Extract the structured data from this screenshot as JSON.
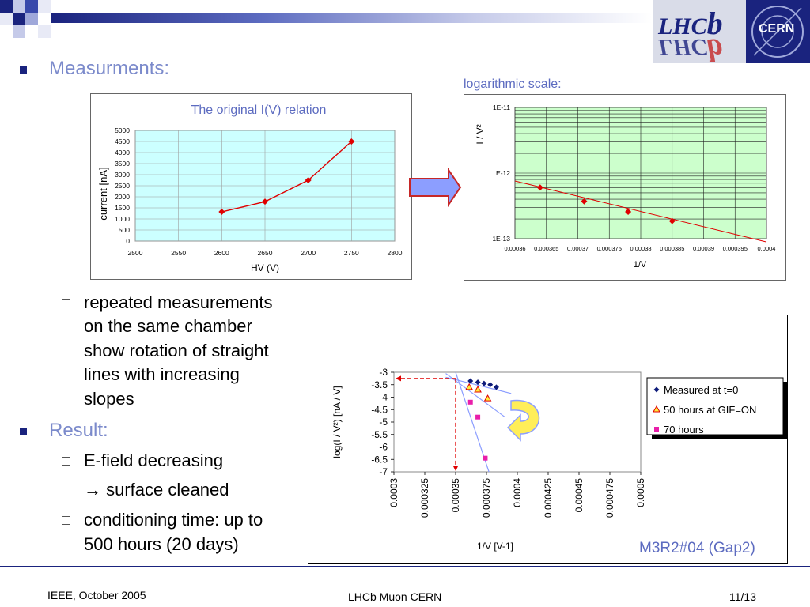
{
  "slide": {
    "heading1": "Measurments:",
    "log_caption": "logarithmic scale:",
    "sub_bullets_1": [
      "repeated measurements",
      "on the same chamber",
      "show rotation of straight",
      "lines with increasing",
      "slopes"
    ],
    "heading2": "Result:",
    "sub_bullet_2a": "E-field decreasing",
    "sub_bullet_2b": "→ surface cleaned",
    "sub_bullet_3": [
      "conditioning time: up to",
      "500 hours (20 days)"
    ],
    "chamber_label": "M3R2#04 (Gap2)"
  },
  "logos": {
    "lhcb": "LHCb",
    "cern": "CERN"
  },
  "footer": {
    "left": "IEEE, October 2005",
    "center": "LHCb Muon CERN",
    "right": "11/13"
  },
  "colors": {
    "title_blue": "#7b8acb",
    "bullet_navy": "#1a237e",
    "plot_cyan": "#ccffff",
    "plot_green": "#ccffcc",
    "marker_red": "#e00000"
  },
  "chart_data": [
    {
      "type": "line",
      "title": "The original I(V) relation",
      "xlabel": "HV (V)",
      "ylabel": "current [nA]",
      "xlim": [
        2500,
        2800
      ],
      "ylim": [
        0,
        5000
      ],
      "x_ticks": [
        "2500",
        "2550",
        "2600",
        "2650",
        "2700",
        "2750",
        "2800"
      ],
      "y_ticks": [
        "0",
        "500",
        "1000",
        "1500",
        "2000",
        "2500",
        "3000",
        "3500",
        "4000",
        "4500",
        "5000"
      ],
      "x": [
        2600,
        2650,
        2700,
        2750
      ],
      "y": [
        1320,
        1780,
        2750,
        4500
      ]
    },
    {
      "type": "scatter",
      "title": "",
      "xlabel": "1/V",
      "ylabel": "I / V²",
      "y_scale": "log",
      "xlim": [
        0.00036,
        0.0004
      ],
      "ylim_log10": [
        -13,
        -11
      ],
      "x_ticks": [
        "0.00036",
        "0.000365",
        "0.00037",
        "0.000375",
        "0.00038",
        "0.000385",
        "0.00039",
        "0.000395",
        "0.0004"
      ],
      "y_ticks": [
        "1E-11",
        "E-12",
        "1E-13"
      ],
      "x": [
        0.000364,
        0.000371,
        0.000378,
        0.000385
      ],
      "log10_y": [
        -12.22,
        -12.43,
        -12.59,
        -12.73
      ],
      "fit": {
        "x": [
          0.00036,
          0.0004
        ],
        "log10_y": [
          -12.12,
          -13.05
        ]
      }
    },
    {
      "type": "scatter",
      "title": "",
      "xlabel": "1/V [V-1]",
      "ylabel": "log(I / V²) [nA / V]",
      "xlim": [
        0.0003,
        0.0005
      ],
      "ylim": [
        -7,
        -3
      ],
      "x_ticks": [
        "0.0003",
        "0.000325",
        "0.00035",
        "0.000375",
        "0.0004",
        "0.000425",
        "0.00045",
        "0.000475",
        "0.0005"
      ],
      "y_ticks": [
        "-3",
        "-3.5",
        "-4",
        "-4.5",
        "-5",
        "-5.5",
        "-6",
        "-6.5",
        "-7"
      ],
      "series": [
        {
          "name": "Measured at t=0",
          "x": [
            0.000362,
            0.000368,
            0.000373,
            0.000378,
            0.000383
          ],
          "y": [
            -3.35,
            -3.4,
            -3.45,
            -3.5,
            -3.6
          ]
        },
        {
          "name": "50 hours at GIF=ON",
          "x": [
            0.000361,
            0.000368,
            0.000376
          ],
          "y": [
            -3.6,
            -3.7,
            -4.05
          ]
        },
        {
          "name": "70 hours",
          "x": [
            0.000362,
            0.000368,
            0.000374
          ],
          "y": [
            -4.2,
            -4.8,
            -6.45
          ]
        }
      ]
    }
  ]
}
